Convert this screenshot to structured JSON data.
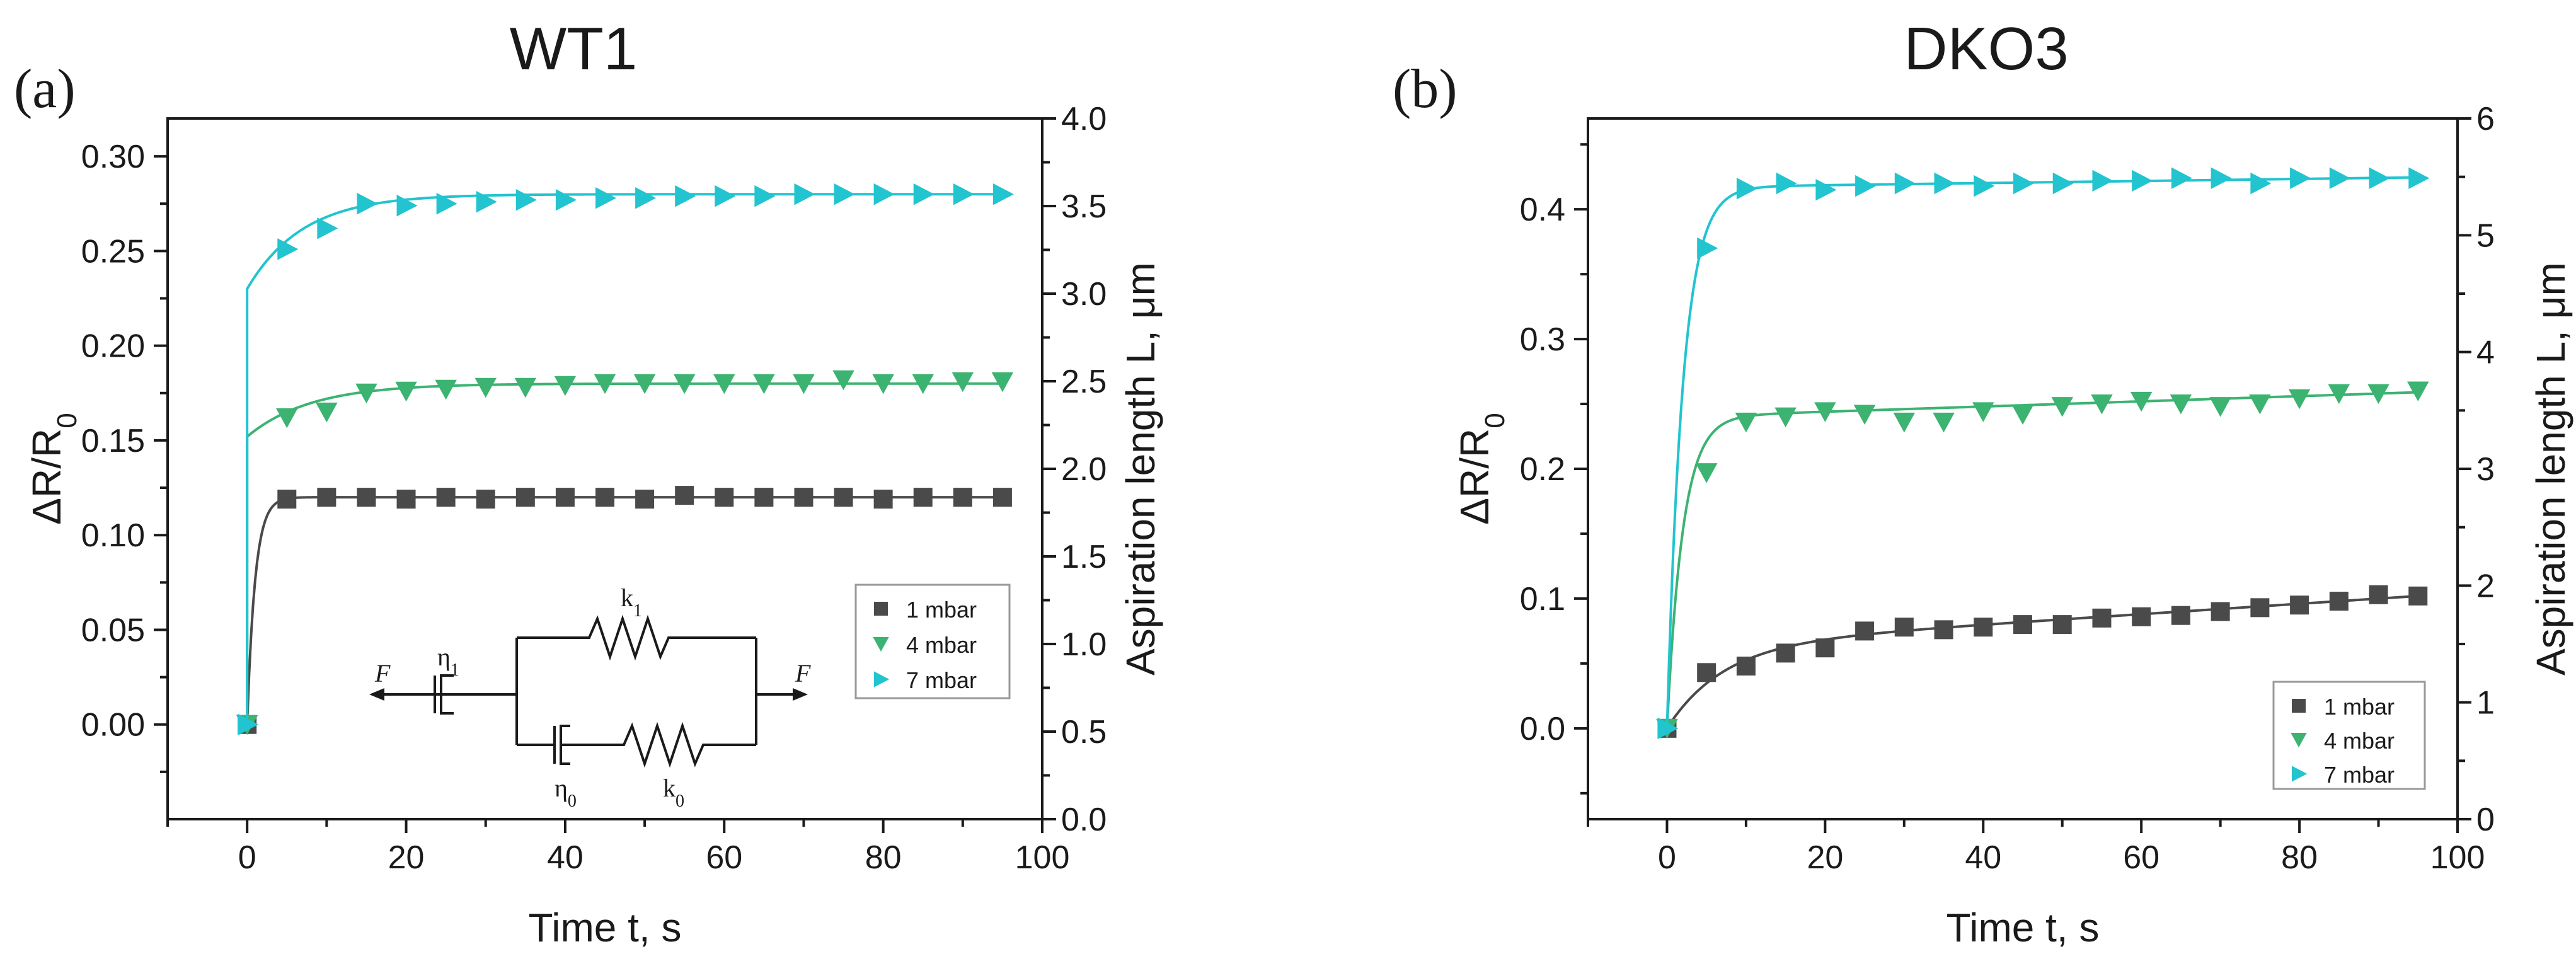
{
  "chart_data": [
    {
      "panel_label": "(a)",
      "title": "WT1",
      "type": "scatter",
      "xlabel": "Time t, s",
      "ylabel_left": "ΔR/R0",
      "ylabel_right": "Aspiration length L, μm",
      "xlim": [
        -10,
        100
      ],
      "ylim_left": [
        -0.05,
        0.32
      ],
      "ylim_right": [
        0,
        4.0
      ],
      "xticks": [
        0,
        20,
        40,
        60,
        80,
        100
      ],
      "xtick_labels": [
        "0",
        "20",
        "40",
        "60",
        "80",
        "100"
      ],
      "yticks_left": [
        0,
        0.05,
        0.1,
        0.15,
        0.2,
        0.25,
        0.3
      ],
      "ytick_labels_left": [
        "0.00",
        "0.05",
        "0.10",
        "0.15",
        "0.20",
        "0.25",
        "0.30"
      ],
      "yticks_right": [
        0,
        0.5,
        1,
        1.5,
        2,
        2.5,
        3,
        3.5,
        4
      ],
      "ytick_labels_right": [
        "0.0",
        "0.5",
        "1.0",
        "1.5",
        "2.0",
        "2.5",
        "3.0",
        "3.5",
        "4.0"
      ],
      "grid": false,
      "legend_position": "middle-right",
      "inset": {
        "description": "spring-dashpot model",
        "eta1": "η",
        "eta1_sub": "1",
        "k1": "k",
        "k1_sub": "1",
        "eta0": "η",
        "eta0_sub": "0",
        "k0": "k",
        "k0_sub": "0",
        "force_left": "F",
        "force_right": "F"
      },
      "series": [
        {
          "name": "1 mbar",
          "marker": "square",
          "color": "#4a4a4a",
          "x": [
            0,
            5,
            10,
            15,
            20,
            25,
            30,
            35,
            40,
            45,
            50,
            55,
            60,
            65,
            70,
            75,
            80,
            85,
            90,
            95
          ],
          "y": [
            0,
            0.119,
            0.12,
            0.12,
            0.119,
            0.12,
            0.119,
            0.12,
            0.12,
            0.12,
            0.119,
            0.121,
            0.12,
            0.12,
            0.12,
            0.12,
            0.119,
            0.12,
            0.12,
            0.12
          ],
          "fit": {
            "y0": 0,
            "a": 0.12,
            "b": 0,
            "tau": 1.0
          }
        },
        {
          "name": "4 mbar",
          "marker": "triangle-down",
          "color": "#3cb371",
          "x": [
            0,
            5,
            10,
            15,
            20,
            25,
            30,
            35,
            40,
            45,
            50,
            55,
            60,
            65,
            70,
            75,
            80,
            85,
            90,
            95
          ],
          "y": [
            0,
            0.162,
            0.165,
            0.175,
            0.176,
            0.177,
            0.178,
            0.178,
            0.179,
            0.18,
            0.18,
            0.18,
            0.18,
            0.18,
            0.18,
            0.182,
            0.18,
            0.18,
            0.181,
            0.181
          ],
          "fit": {
            "y0": 0.152,
            "a": 0.028,
            "b": 0,
            "tau": 8
          }
        },
        {
          "name": "7 mbar",
          "marker": "triangle-right",
          "color": "#21c4cf",
          "x": [
            0,
            5,
            10,
            15,
            20,
            25,
            30,
            35,
            40,
            45,
            50,
            55,
            60,
            65,
            70,
            75,
            80,
            85,
            90,
            95
          ],
          "y": [
            0,
            0.251,
            0.262,
            0.275,
            0.274,
            0.275,
            0.276,
            0.277,
            0.277,
            0.278,
            0.278,
            0.279,
            0.279,
            0.279,
            0.28,
            0.28,
            0.28,
            0.28,
            0.28,
            0.28
          ],
          "fit": {
            "y0": 0.23,
            "a": 0.05,
            "b": 0,
            "tau": 7
          }
        }
      ]
    },
    {
      "panel_label": "(b)",
      "title": "DKO3",
      "type": "scatter",
      "xlabel": "Time t, s",
      "ylabel_left": "ΔR/R0",
      "ylabel_right": "Aspiration length L, μm",
      "xlim": [
        -10,
        100
      ],
      "ylim_left": [
        -0.07,
        0.47
      ],
      "ylim_right": [
        0,
        6
      ],
      "xticks": [
        0,
        20,
        40,
        60,
        80,
        100
      ],
      "xtick_labels": [
        "0",
        "20",
        "40",
        "60",
        "80",
        "100"
      ],
      "yticks_left": [
        0,
        0.1,
        0.2,
        0.3,
        0.4
      ],
      "ytick_labels_left": [
        "0.0",
        "0.1",
        "0.2",
        "0.3",
        "0.4"
      ],
      "yticks_right": [
        0,
        1,
        2,
        3,
        4,
        5,
        6
      ],
      "ytick_labels_right": [
        "0",
        "1",
        "2",
        "3",
        "4",
        "5",
        "6"
      ],
      "grid": false,
      "legend_position": "bottom-right",
      "series": [
        {
          "name": "1 mbar",
          "marker": "square",
          "color": "#4a4a4a",
          "x": [
            0,
            5,
            10,
            15,
            20,
            25,
            30,
            35,
            40,
            45,
            50,
            55,
            60,
            65,
            70,
            75,
            80,
            85,
            90,
            95
          ],
          "y": [
            0,
            0.043,
            0.048,
            0.058,
            0.062,
            0.075,
            0.078,
            0.076,
            0.078,
            0.08,
            0.08,
            0.085,
            0.086,
            0.087,
            0.09,
            0.093,
            0.095,
            0.098,
            0.103,
            0.102
          ],
          "fit": {
            "y0": 0,
            "a": 0.064,
            "b": 0.0004,
            "tau": 7
          }
        },
        {
          "name": "4 mbar",
          "marker": "triangle-down",
          "color": "#3cb371",
          "x": [
            0,
            5,
            10,
            15,
            20,
            25,
            30,
            35,
            40,
            45,
            50,
            55,
            60,
            65,
            70,
            75,
            80,
            85,
            90,
            95
          ],
          "y": [
            0,
            0.197,
            0.236,
            0.24,
            0.244,
            0.242,
            0.236,
            0.236,
            0.244,
            0.242,
            0.248,
            0.25,
            0.252,
            0.25,
            0.248,
            0.25,
            0.254,
            0.258,
            0.258,
            0.26
          ],
          "fit": {
            "y0": 0,
            "a": 0.24,
            "b": 0.0002,
            "tau": 2
          }
        },
        {
          "name": "7 mbar",
          "marker": "triangle-right",
          "color": "#21c4cf",
          "x": [
            0,
            5,
            10,
            15,
            20,
            25,
            30,
            35,
            40,
            45,
            50,
            55,
            60,
            65,
            70,
            75,
            80,
            85,
            90,
            95
          ],
          "y": [
            0,
            0.37,
            0.416,
            0.42,
            0.415,
            0.418,
            0.42,
            0.42,
            0.418,
            0.42,
            0.42,
            0.422,
            0.422,
            0.424,
            0.424,
            0.42,
            0.424,
            0.424,
            0.424,
            0.424
          ],
          "fit": {
            "y0": 0,
            "a": 0.417,
            "b": 8e-05,
            "tau": 2.0
          }
        }
      ]
    }
  ]
}
